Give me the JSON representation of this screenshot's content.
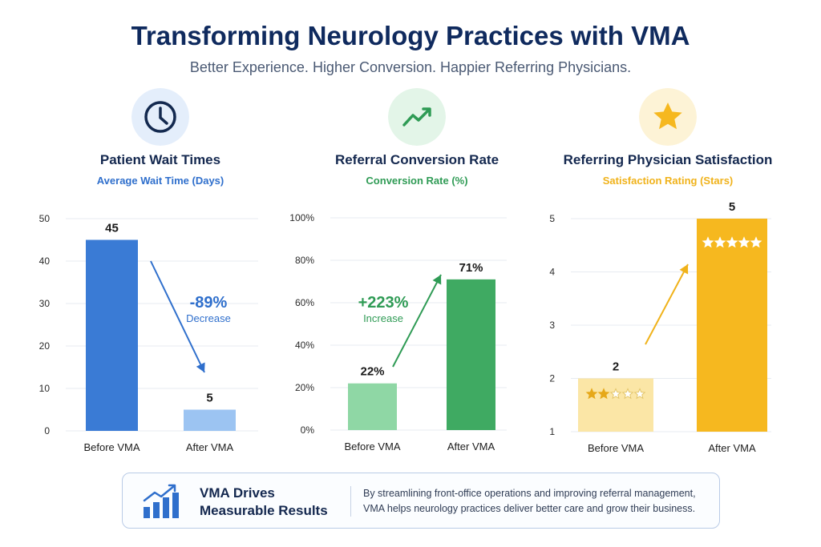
{
  "header": {
    "title": "Transforming Neurology Practices with VMA",
    "subtitle": "Better Experience. Higher Conversion. Happier Referring Physicians."
  },
  "colors": {
    "blue": "#3a7bd5",
    "light_blue": "#9cc4f2",
    "green": "#3faa62",
    "light_green": "#8fd7a5",
    "gold": "#f6b81f",
    "light_gold": "#fbe6a6"
  },
  "chart_data": [
    {
      "type": "bar",
      "title": "Patient Wait Times",
      "subtitle": "Average Wait Time (Days)",
      "icon": "clock-icon",
      "categories": [
        "Before VMA",
        "After VMA"
      ],
      "values": [
        45,
        5
      ],
      "value_labels": [
        "45",
        "5"
      ],
      "ylim": [
        0,
        50
      ],
      "yticks": [
        "0",
        "10",
        "20",
        "30",
        "40",
        "50"
      ],
      "change": {
        "value": "-89%",
        "label": "Decrease"
      }
    },
    {
      "type": "bar",
      "title": "Referral Conversion Rate",
      "subtitle": "Conversion Rate (%)",
      "icon": "trend-up-icon",
      "categories": [
        "Before VMA",
        "After VMA"
      ],
      "values": [
        22,
        71
      ],
      "value_labels": [
        "22%",
        "71%"
      ],
      "ylim": [
        0,
        100
      ],
      "yticks": [
        "0%",
        "20%",
        "40%",
        "60%",
        "80%",
        "100%"
      ],
      "change": {
        "value": "+223%",
        "label": "Increase"
      }
    },
    {
      "type": "bar",
      "title": "Referring Physician Satisfaction",
      "subtitle": "Satisfaction Rating (Stars)",
      "icon": "star-icon",
      "categories": [
        "Before VMA",
        "After VMA"
      ],
      "values": [
        2,
        5
      ],
      "value_labels": [
        "2",
        "5"
      ],
      "ylim": [
        1,
        5
      ],
      "yticks": [
        "1",
        "2",
        "3",
        "4",
        "5"
      ],
      "stars": [
        2,
        5
      ]
    }
  ],
  "footer": {
    "heading": "VMA Drives Measurable Results",
    "text": "By streamlining front-office operations and improving referral management, VMA helps neurology practices deliver better care and grow their business."
  }
}
